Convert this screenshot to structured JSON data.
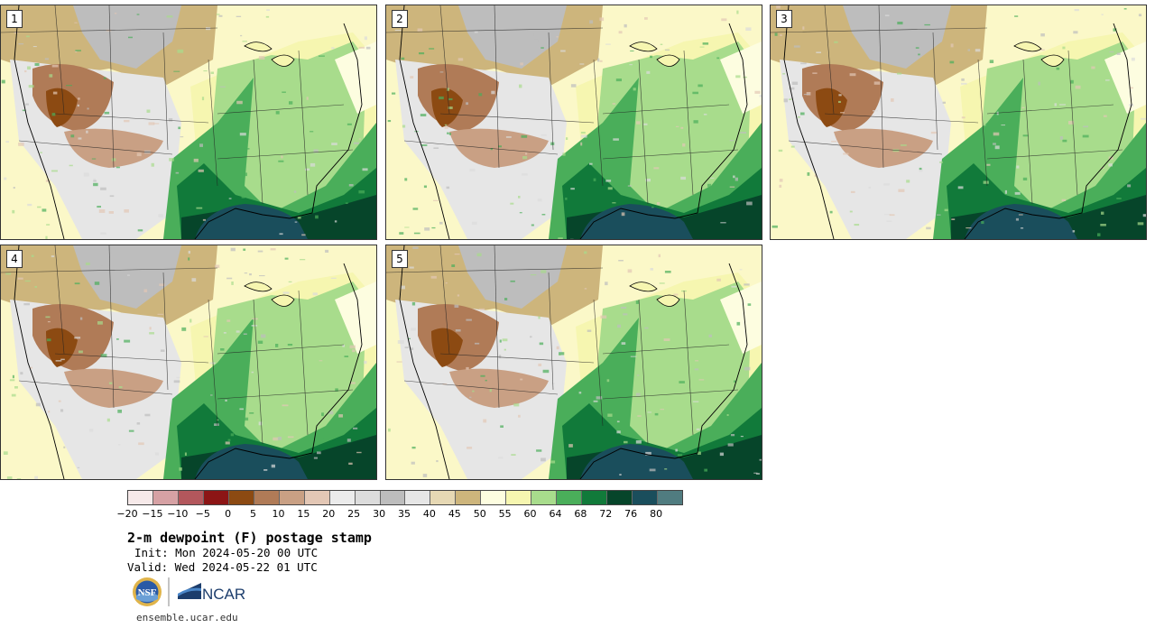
{
  "panels": [
    {
      "id": "p1",
      "label": "1"
    },
    {
      "id": "p2",
      "label": "2"
    },
    {
      "id": "p3",
      "label": "3"
    },
    {
      "id": "p4",
      "label": "4"
    },
    {
      "id": "p5",
      "label": "5"
    }
  ],
  "colorbar": {
    "colors": [
      "#f6e9e9",
      "#d6a1a4",
      "#b3575c",
      "#8c1515",
      "#8c4a12",
      "#b07b57",
      "#c9a084",
      "#e3c7b5",
      "#ebebeb",
      "#dcdcdc",
      "#bdbdbd",
      "#e6e6e6",
      "#e6d8b4",
      "#cdb57c",
      "#fdfde0",
      "#f6f6b0",
      "#a8dc8c",
      "#4aae5a",
      "#117a3a",
      "#06452a",
      "#1a4e5c",
      "#507c80"
    ],
    "ticks": [
      "−20",
      "−15",
      "−10",
      "−5",
      "0",
      "5",
      "10",
      "15",
      "20",
      "25",
      "30",
      "35",
      "40",
      "45",
      "50",
      "55",
      "60",
      "64",
      "68",
      "72",
      "76",
      "80"
    ]
  },
  "title": "2-m dewpoint (F) postage stamp",
  "init": "Init: Mon 2024-05-20 00 UTC",
  "valid": "Valid: Wed 2024-05-22 01 UTC",
  "logos": {
    "nsf": "NSF",
    "ncar": "NCAR"
  },
  "url": "ensemble.ucar.edu"
}
